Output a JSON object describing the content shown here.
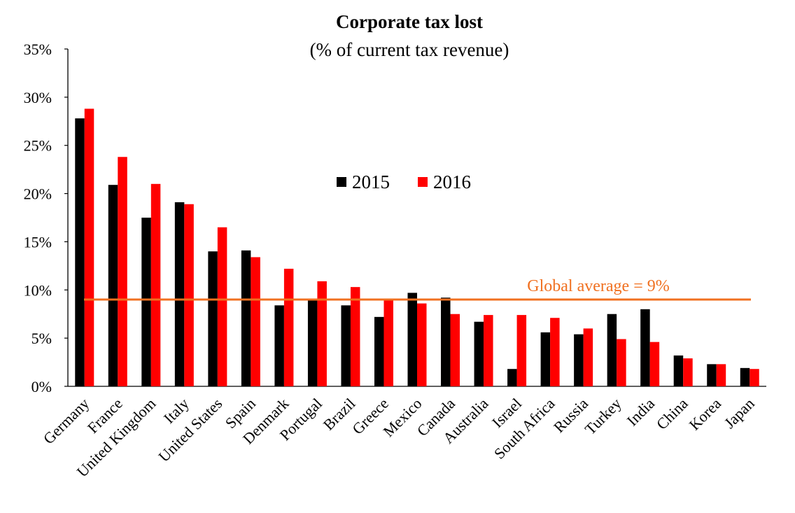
{
  "chart_data": {
    "type": "bar",
    "title": "Corporate tax lost",
    "subtitle": "(% of current tax revenue)",
    "xlabel": "",
    "ylabel": "",
    "ylim": [
      0,
      35
    ],
    "y_ticks": [
      "0%",
      "5%",
      "10%",
      "15%",
      "20%",
      "25%",
      "30%",
      "35%"
    ],
    "y_tick_values": [
      0,
      5,
      10,
      15,
      20,
      25,
      30,
      35
    ],
    "grid": false,
    "legend_position": "center",
    "categories": [
      "Germany",
      "France",
      "United Kingdom",
      "Italy",
      "United States",
      "Spain",
      "Denmark",
      "Portugal",
      "Brazil",
      "Greece",
      "Mexico",
      "Canada",
      "Australia",
      "Israel",
      "South Africa",
      "Russia",
      "Turkey",
      "India",
      "China",
      "Korea",
      "Japan"
    ],
    "series": [
      {
        "name": "2015",
        "color": "#000000",
        "values": [
          27.8,
          20.9,
          17.5,
          19.1,
          14.0,
          14.1,
          8.4,
          8.9,
          8.4,
          7.2,
          9.7,
          9.2,
          6.7,
          1.8,
          5.6,
          5.4,
          7.5,
          8.0,
          3.2,
          2.3,
          1.9
        ]
      },
      {
        "name": "2016",
        "color": "#ff0000",
        "values": [
          28.8,
          23.8,
          21.0,
          18.9,
          16.5,
          13.4,
          12.2,
          10.9,
          10.3,
          9.0,
          8.6,
          7.5,
          7.4,
          7.4,
          7.1,
          6.0,
          4.9,
          4.6,
          2.9,
          2.3,
          1.8
        ]
      }
    ],
    "reference_line": {
      "value": 9,
      "label": "Global average = 9%",
      "color": "#f07020"
    }
  }
}
